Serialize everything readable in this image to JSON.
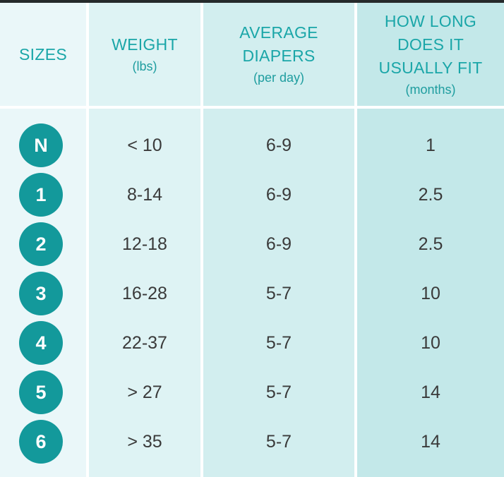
{
  "headers": {
    "sizes": "SIZES",
    "weight": "WEIGHT",
    "weight_unit": "(lbs)",
    "diapers_line1": "AVERAGE",
    "diapers_line2": "DIAPERS",
    "diapers_unit": "(per day)",
    "fit_line1": "HOW LONG",
    "fit_line2": "DOES IT",
    "fit_line3": "USUALLY FIT",
    "fit_unit": "(months)"
  },
  "rows": [
    {
      "size": "N",
      "weight": "< 10",
      "diapers": "6-9",
      "months": "1"
    },
    {
      "size": "1",
      "weight": "8-14",
      "diapers": "6-9",
      "months": "2.5"
    },
    {
      "size": "2",
      "weight": "12-18",
      "diapers": "6-9",
      "months": "2.5"
    },
    {
      "size": "3",
      "weight": "16-28",
      "diapers": "5-7",
      "months": "10"
    },
    {
      "size": "4",
      "weight": "22-37",
      "diapers": "5-7",
      "months": "10"
    },
    {
      "size": "5",
      "weight": "> 27",
      "diapers": "5-7",
      "months": "14"
    },
    {
      "size": "6",
      "weight": "> 35",
      "diapers": "5-7",
      "months": "14"
    }
  ],
  "colors": {
    "header_text": "#1aa6a8",
    "badge": "#13999b",
    "body_text": "#3a3a3a"
  }
}
